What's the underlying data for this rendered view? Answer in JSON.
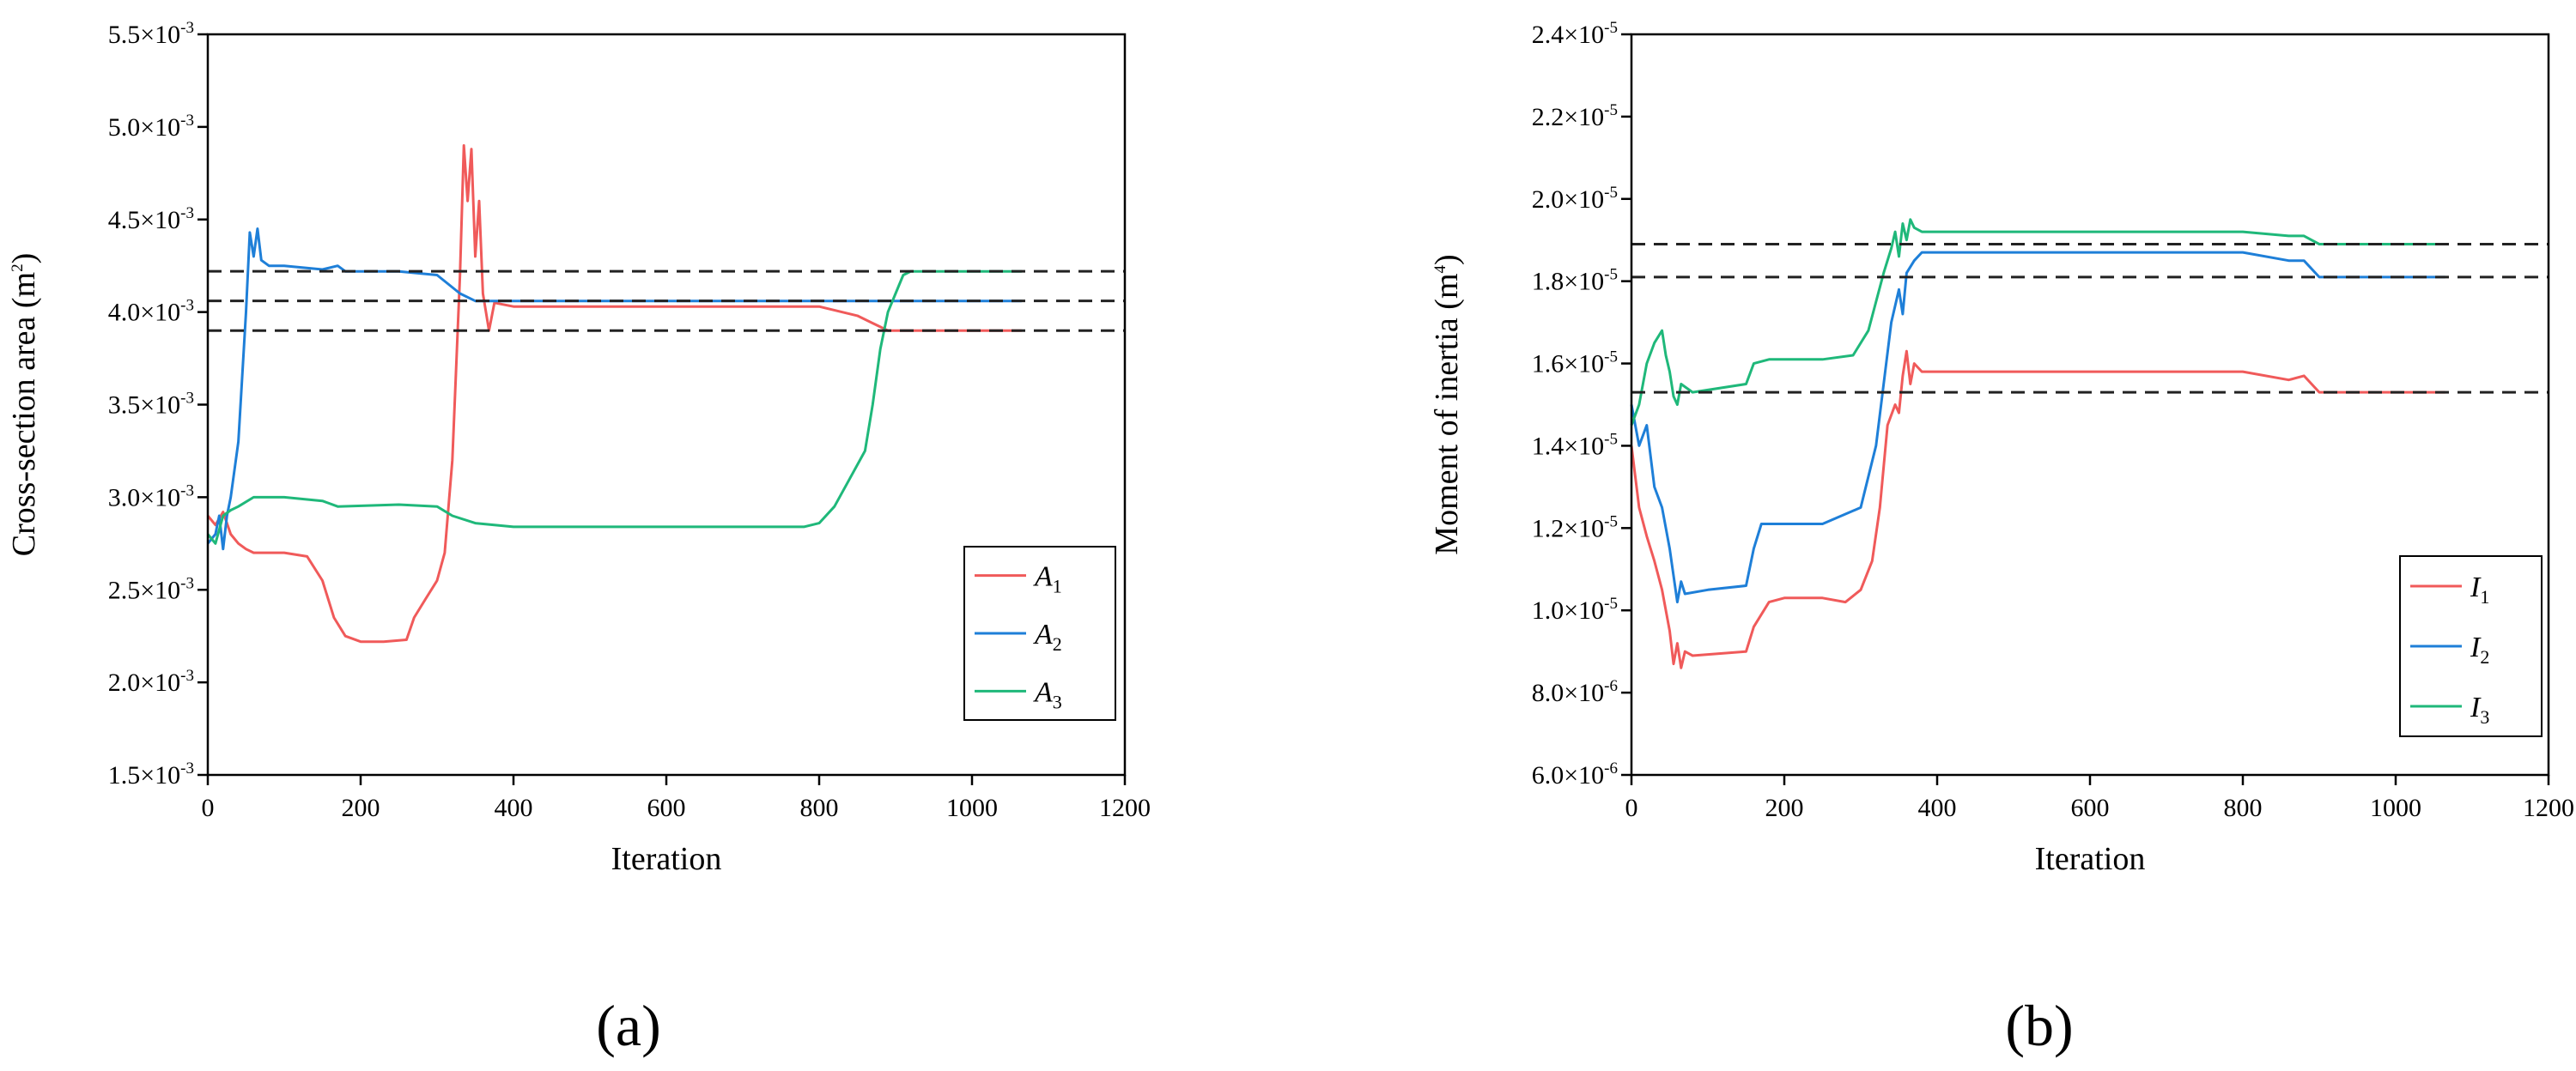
{
  "chart_data": [
    {
      "type": "line",
      "panel_label": "(a)",
      "xlabel": "Iteration",
      "ylabel": "Cross-section area (m²)",
      "ylabel_main": "Cross-section area (m",
      "ylabel_sup": "2",
      "ylabel_end": ")",
      "xlim": [
        0,
        1200
      ],
      "ylim": [
        0.0015,
        0.0055
      ],
      "x_ticks": [
        0,
        200,
        400,
        600,
        800,
        1000,
        1200
      ],
      "y_ticks": [
        {
          "value": 0.0015,
          "mant": "1.5×10",
          "exp": "-3"
        },
        {
          "value": 0.002,
          "mant": "2.0×10",
          "exp": "-3"
        },
        {
          "value": 0.0025,
          "mant": "2.5×10",
          "exp": "-3"
        },
        {
          "value": 0.003,
          "mant": "3.0×10",
          "exp": "-3"
        },
        {
          "value": 0.0035,
          "mant": "3.5×10",
          "exp": "-3"
        },
        {
          "value": 0.004,
          "mant": "4.0×10",
          "exp": "-3"
        },
        {
          "value": 0.0045,
          "mant": "4.5×10",
          "exp": "-3"
        },
        {
          "value": 0.005,
          "mant": "5.0×10",
          "exp": "-3"
        },
        {
          "value": 0.0055,
          "mant": "5.5×10",
          "exp": "-3"
        }
      ],
      "legend_position": "bottom-right",
      "reference_lines": [
        0.00422,
        0.00406,
        0.0039
      ],
      "series": [
        {
          "name": "A1",
          "label_main": "A",
          "label_sub": "1",
          "color": "#f05a5a",
          "points": [
            [
              0,
              0.0029
            ],
            [
              10,
              0.00285
            ],
            [
              20,
              0.00292
            ],
            [
              30,
              0.0028
            ],
            [
              40,
              0.00275
            ],
            [
              50,
              0.00272
            ],
            [
              60,
              0.0027
            ],
            [
              80,
              0.0027
            ],
            [
              100,
              0.0027
            ],
            [
              130,
              0.00268
            ],
            [
              150,
              0.00255
            ],
            [
              165,
              0.00235
            ],
            [
              180,
              0.00225
            ],
            [
              200,
              0.00222
            ],
            [
              230,
              0.00222
            ],
            [
              260,
              0.00223
            ],
            [
              270,
              0.00235
            ],
            [
              285,
              0.00245
            ],
            [
              300,
              0.00255
            ],
            [
              310,
              0.0027
            ],
            [
              320,
              0.0032
            ],
            [
              330,
              0.0042
            ],
            [
              335,
              0.0049
            ],
            [
              340,
              0.0046
            ],
            [
              345,
              0.00488
            ],
            [
              350,
              0.0043
            ],
            [
              355,
              0.0046
            ],
            [
              360,
              0.0041
            ],
            [
              368,
              0.0039
            ],
            [
              375,
              0.00405
            ],
            [
              400,
              0.00403
            ],
            [
              500,
              0.00403
            ],
            [
              600,
              0.00403
            ],
            [
              700,
              0.00403
            ],
            [
              800,
              0.00403
            ],
            [
              850,
              0.00398
            ],
            [
              880,
              0.00392
            ],
            [
              890,
              0.0039
            ],
            [
              1000,
              0.0039
            ],
            [
              1065,
              0.0039
            ]
          ]
        },
        {
          "name": "A2",
          "label_main": "A",
          "label_sub": "2",
          "color": "#1e7fd8",
          "points": [
            [
              0,
              0.00275
            ],
            [
              10,
              0.0028
            ],
            [
              15,
              0.0029
            ],
            [
              20,
              0.00272
            ],
            [
              25,
              0.0029
            ],
            [
              30,
              0.003
            ],
            [
              40,
              0.0033
            ],
            [
              50,
              0.004
            ],
            [
              55,
              0.00443
            ],
            [
              60,
              0.0043
            ],
            [
              65,
              0.00445
            ],
            [
              70,
              0.00428
            ],
            [
              80,
              0.00425
            ],
            [
              100,
              0.00425
            ],
            [
              150,
              0.00423
            ],
            [
              170,
              0.00425
            ],
            [
              180,
              0.00422
            ],
            [
              250,
              0.00422
            ],
            [
              300,
              0.0042
            ],
            [
              330,
              0.0041
            ],
            [
              350,
              0.00406
            ],
            [
              400,
              0.00406
            ],
            [
              600,
              0.00406
            ],
            [
              800,
              0.00406
            ],
            [
              900,
              0.00406
            ],
            [
              1000,
              0.00406
            ],
            [
              1065,
              0.00406
            ]
          ]
        },
        {
          "name": "A3",
          "label_main": "A",
          "label_sub": "3",
          "color": "#1fb87a",
          "points": [
            [
              0,
              0.0028
            ],
            [
              10,
              0.00275
            ],
            [
              20,
              0.0029
            ],
            [
              30,
              0.00293
            ],
            [
              40,
              0.00295
            ],
            [
              60,
              0.003
            ],
            [
              100,
              0.003
            ],
            [
              150,
              0.00298
            ],
            [
              170,
              0.00295
            ],
            [
              250,
              0.00296
            ],
            [
              300,
              0.00295
            ],
            [
              320,
              0.0029
            ],
            [
              350,
              0.00286
            ],
            [
              400,
              0.00284
            ],
            [
              500,
              0.00284
            ],
            [
              600,
              0.00284
            ],
            [
              700,
              0.00284
            ],
            [
              780,
              0.00284
            ],
            [
              800,
              0.00286
            ],
            [
              820,
              0.00295
            ],
            [
              840,
              0.0031
            ],
            [
              860,
              0.00325
            ],
            [
              870,
              0.0035
            ],
            [
              880,
              0.0038
            ],
            [
              890,
              0.004
            ],
            [
              900,
              0.0041
            ],
            [
              910,
              0.0042
            ],
            [
              920,
              0.00422
            ],
            [
              1000,
              0.00422
            ],
            [
              1065,
              0.00422
            ]
          ]
        }
      ]
    },
    {
      "type": "line",
      "panel_label": "(b)",
      "xlabel": "Iteration",
      "ylabel": "Moment of inertia (m⁴)",
      "ylabel_main": "Moment of inertia (m",
      "ylabel_sup": "4",
      "ylabel_end": ")",
      "xlim": [
        0,
        1200
      ],
      "ylim": [
        6e-06,
        2.4e-05
      ],
      "x_ticks": [
        0,
        200,
        400,
        600,
        800,
        1000,
        1200
      ],
      "y_ticks": [
        {
          "value": 6e-06,
          "mant": "6.0×10",
          "exp": "-6"
        },
        {
          "value": 8e-06,
          "mant": "8.0×10",
          "exp": "-6"
        },
        {
          "value": 1e-05,
          "mant": "1.0×10",
          "exp": "-5"
        },
        {
          "value": 1.2e-05,
          "mant": "1.2×10",
          "exp": "-5"
        },
        {
          "value": 1.4e-05,
          "mant": "1.4×10",
          "exp": "-5"
        },
        {
          "value": 1.6e-05,
          "mant": "1.6×10",
          "exp": "-5"
        },
        {
          "value": 1.8e-05,
          "mant": "1.8×10",
          "exp": "-5"
        },
        {
          "value": 2e-05,
          "mant": "2.0×10",
          "exp": "-5"
        },
        {
          "value": 2.2e-05,
          "mant": "2.2×10",
          "exp": "-5"
        },
        {
          "value": 2.4e-05,
          "mant": "2.4×10",
          "exp": "-5"
        }
      ],
      "legend_position": "bottom-right",
      "reference_lines": [
        1.89e-05,
        1.81e-05,
        1.53e-05
      ],
      "series": [
        {
          "name": "I1",
          "label_main": "I",
          "label_sub": "1",
          "color": "#f05a5a",
          "points": [
            [
              0,
              1.4e-05
            ],
            [
              10,
              1.25e-05
            ],
            [
              20,
              1.18e-05
            ],
            [
              30,
              1.12e-05
            ],
            [
              40,
              1.05e-05
            ],
            [
              50,
              9.5e-06
            ],
            [
              55,
              8.7e-06
            ],
            [
              60,
              9.2e-06
            ],
            [
              65,
              8.6e-06
            ],
            [
              70,
              9e-06
            ],
            [
              80,
              8.9e-06
            ],
            [
              150,
              9e-06
            ],
            [
              160,
              9.6e-06
            ],
            [
              180,
              1.02e-05
            ],
            [
              200,
              1.03e-05
            ],
            [
              250,
              1.03e-05
            ],
            [
              280,
              1.02e-05
            ],
            [
              300,
              1.05e-05
            ],
            [
              315,
              1.12e-05
            ],
            [
              325,
              1.25e-05
            ],
            [
              335,
              1.45e-05
            ],
            [
              345,
              1.5e-05
            ],
            [
              350,
              1.48e-05
            ],
            [
              355,
              1.57e-05
            ],
            [
              360,
              1.63e-05
            ],
            [
              365,
              1.55e-05
            ],
            [
              370,
              1.6e-05
            ],
            [
              380,
              1.58e-05
            ],
            [
              500,
              1.58e-05
            ],
            [
              800,
              1.58e-05
            ],
            [
              860,
              1.56e-05
            ],
            [
              880,
              1.57e-05
            ],
            [
              900,
              1.53e-05
            ],
            [
              1000,
              1.53e-05
            ],
            [
              1065,
              1.53e-05
            ]
          ]
        },
        {
          "name": "I2",
          "label_main": "I",
          "label_sub": "2",
          "color": "#1e7fd8",
          "points": [
            [
              0,
              1.5e-05
            ],
            [
              10,
              1.4e-05
            ],
            [
              20,
              1.45e-05
            ],
            [
              30,
              1.3e-05
            ],
            [
              40,
              1.25e-05
            ],
            [
              50,
              1.15e-05
            ],
            [
              60,
              1.02e-05
            ],
            [
              65,
              1.07e-05
            ],
            [
              70,
              1.04e-05
            ],
            [
              100,
              1.05e-05
            ],
            [
              150,
              1.06e-05
            ],
            [
              160,
              1.15e-05
            ],
            [
              170,
              1.21e-05
            ],
            [
              200,
              1.21e-05
            ],
            [
              250,
              1.21e-05
            ],
            [
              300,
              1.25e-05
            ],
            [
              320,
              1.4e-05
            ],
            [
              330,
              1.55e-05
            ],
            [
              340,
              1.7e-05
            ],
            [
              350,
              1.78e-05
            ],
            [
              355,
              1.72e-05
            ],
            [
              360,
              1.82e-05
            ],
            [
              370,
              1.85e-05
            ],
            [
              380,
              1.87e-05
            ],
            [
              500,
              1.87e-05
            ],
            [
              800,
              1.87e-05
            ],
            [
              860,
              1.85e-05
            ],
            [
              880,
              1.85e-05
            ],
            [
              900,
              1.81e-05
            ],
            [
              1000,
              1.81e-05
            ],
            [
              1065,
              1.81e-05
            ]
          ]
        },
        {
          "name": "I3",
          "label_main": "I",
          "label_sub": "3",
          "color": "#1fb87a",
          "points": [
            [
              0,
              1.45e-05
            ],
            [
              10,
              1.5e-05
            ],
            [
              20,
              1.6e-05
            ],
            [
              30,
              1.65e-05
            ],
            [
              40,
              1.68e-05
            ],
            [
              45,
              1.62e-05
            ],
            [
              50,
              1.58e-05
            ],
            [
              55,
              1.52e-05
            ],
            [
              60,
              1.5e-05
            ],
            [
              65,
              1.55e-05
            ],
            [
              80,
              1.53e-05
            ],
            [
              150,
              1.55e-05
            ],
            [
              160,
              1.6e-05
            ],
            [
              180,
              1.61e-05
            ],
            [
              250,
              1.61e-05
            ],
            [
              290,
              1.62e-05
            ],
            [
              310,
              1.68e-05
            ],
            [
              320,
              1.75e-05
            ],
            [
              330,
              1.82e-05
            ],
            [
              340,
              1.88e-05
            ],
            [
              345,
              1.92e-05
            ],
            [
              350,
              1.86e-05
            ],
            [
              355,
              1.94e-05
            ],
            [
              360,
              1.9e-05
            ],
            [
              365,
              1.95e-05
            ],
            [
              370,
              1.93e-05
            ],
            [
              380,
              1.92e-05
            ],
            [
              500,
              1.92e-05
            ],
            [
              800,
              1.92e-05
            ],
            [
              860,
              1.91e-05
            ],
            [
              880,
              1.91e-05
            ],
            [
              900,
              1.89e-05
            ],
            [
              1000,
              1.89e-05
            ],
            [
              1065,
              1.89e-05
            ]
          ]
        }
      ]
    }
  ]
}
